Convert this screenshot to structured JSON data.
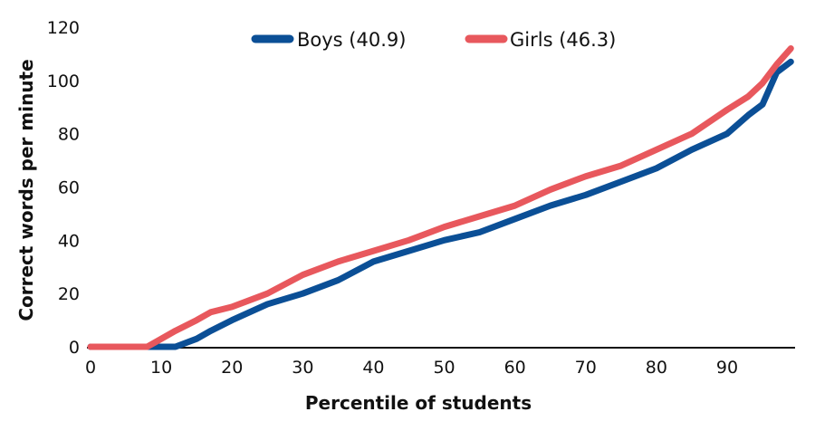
{
  "chart_data": {
    "type": "line",
    "title": "",
    "xlabel": "Percentile of students",
    "ylabel": "Correct words per minute",
    "xlim": [
      0,
      99.5
    ],
    "ylim": [
      0,
      120
    ],
    "xticks": [
      0,
      10,
      20,
      30,
      40,
      50,
      60,
      70,
      80,
      90
    ],
    "yticks": [
      0,
      20,
      40,
      60,
      80,
      100,
      120
    ],
    "grid": false,
    "legend_position": "top-center",
    "x": [
      0,
      5,
      8,
      10,
      12,
      15,
      17,
      20,
      25,
      30,
      35,
      40,
      45,
      50,
      55,
      60,
      65,
      70,
      75,
      80,
      85,
      90,
      93,
      95,
      97,
      99
    ],
    "series": [
      {
        "name": "Boys (40.9)",
        "color": "#0b4f96",
        "values": [
          0,
          0,
          0,
          0,
          0,
          3,
          6,
          10,
          16,
          20,
          25,
          32,
          36,
          40,
          43,
          48,
          53,
          57,
          62,
          67,
          74,
          80,
          87,
          91,
          103,
          107
        ]
      },
      {
        "name": "Girls (46.3)",
        "color": "#e8585d",
        "values": [
          0,
          0,
          0,
          3,
          6,
          10,
          13,
          15,
          20,
          27,
          32,
          36,
          40,
          45,
          49,
          53,
          59,
          64,
          68,
          74,
          80,
          89,
          94,
          99,
          106,
          112
        ]
      }
    ]
  }
}
